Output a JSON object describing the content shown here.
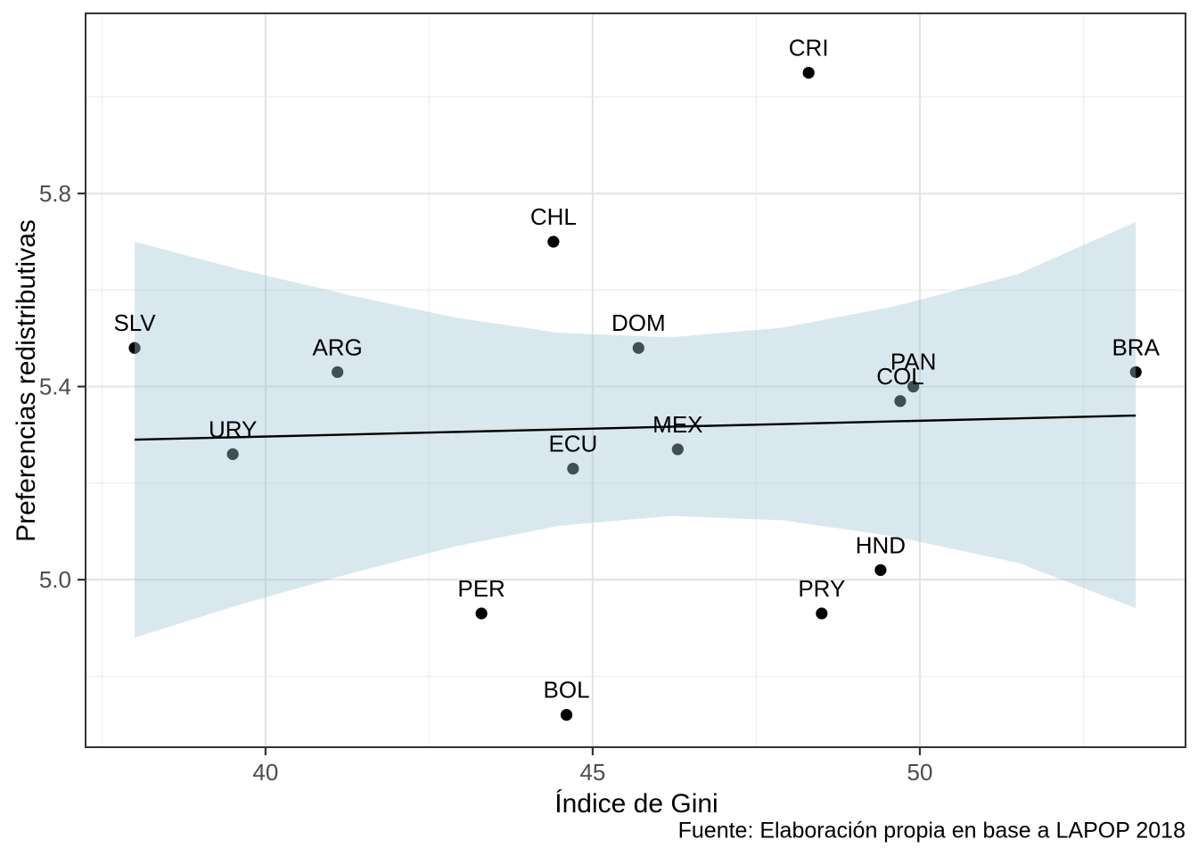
{
  "chart_data": {
    "type": "scatter",
    "title": "",
    "xlabel": "Índice de Gini",
    "ylabel": "Preferencias redistributivas",
    "caption": "Fuente: Elaboración propia en base a LAPOP 2018",
    "xlim": [
      37.25,
      54.06
    ],
    "ylim": [
      4.653,
      6.173
    ],
    "grid": true,
    "legend": "none",
    "x_ticks": [
      {
        "value": 40,
        "label": "40"
      },
      {
        "value": 45,
        "label": "45"
      },
      {
        "value": 50,
        "label": "50"
      }
    ],
    "x_minor_ticks": [
      37.5,
      42.5,
      47.5,
      52.5
    ],
    "y_ticks": [
      {
        "value": 5.0,
        "label": "5.0"
      },
      {
        "value": 5.4,
        "label": "5.4"
      },
      {
        "value": 5.8,
        "label": "5.8"
      }
    ],
    "y_minor_ticks": [
      4.8,
      5.2,
      5.6,
      6.0
    ],
    "points": [
      {
        "label": "SLV",
        "x": 38.0,
        "y": 5.48
      },
      {
        "label": "URY",
        "x": 39.5,
        "y": 5.26
      },
      {
        "label": "ARG",
        "x": 41.1,
        "y": 5.43
      },
      {
        "label": "PER",
        "x": 43.3,
        "y": 4.93
      },
      {
        "label": "CHL",
        "x": 44.4,
        "y": 5.7
      },
      {
        "label": "BOL",
        "x": 44.6,
        "y": 4.72
      },
      {
        "label": "ECU",
        "x": 44.7,
        "y": 5.23
      },
      {
        "label": "DOM",
        "x": 45.7,
        "y": 5.48
      },
      {
        "label": "MEX",
        "x": 46.3,
        "y": 5.27
      },
      {
        "label": "CRI",
        "x": 48.3,
        "y": 6.05
      },
      {
        "label": "PRY",
        "x": 48.5,
        "y": 4.93
      },
      {
        "label": "HND",
        "x": 49.4,
        "y": 5.02
      },
      {
        "label": "COL",
        "x": 49.7,
        "y": 5.37
      },
      {
        "label": "PAN",
        "x": 49.9,
        "y": 5.4
      },
      {
        "label": "BRA",
        "x": 53.3,
        "y": 5.43
      }
    ],
    "smooth": {
      "line": {
        "x1": 38.0,
        "y1": 5.29,
        "x2": 53.3,
        "y2": 5.34
      },
      "band": [
        [
          38.0,
          5.7,
          4.88
        ],
        [
          39.6,
          5.643,
          4.948
        ],
        [
          41.3,
          5.589,
          5.013
        ],
        [
          42.9,
          5.543,
          5.069
        ],
        [
          44.5,
          5.511,
          5.112
        ],
        [
          46.2,
          5.502,
          5.132
        ],
        [
          47.9,
          5.522,
          5.123
        ],
        [
          49.6,
          5.566,
          5.09
        ],
        [
          51.5,
          5.633,
          5.035
        ],
        [
          53.3,
          5.741,
          4.941
        ]
      ]
    },
    "colors": {
      "point": "#000000",
      "band_fill_rgba": "rgba(160,198,215,0.4)",
      "regression_line": "#000000",
      "grid_major": "#e4e4e4",
      "grid_minor": "#efefef",
      "panel_border": "#333333",
      "tick": "#333333",
      "tick_label": "#4d4d4d",
      "axis_title": "#000000",
      "caption": "#000000",
      "background": "#ffffff"
    }
  }
}
